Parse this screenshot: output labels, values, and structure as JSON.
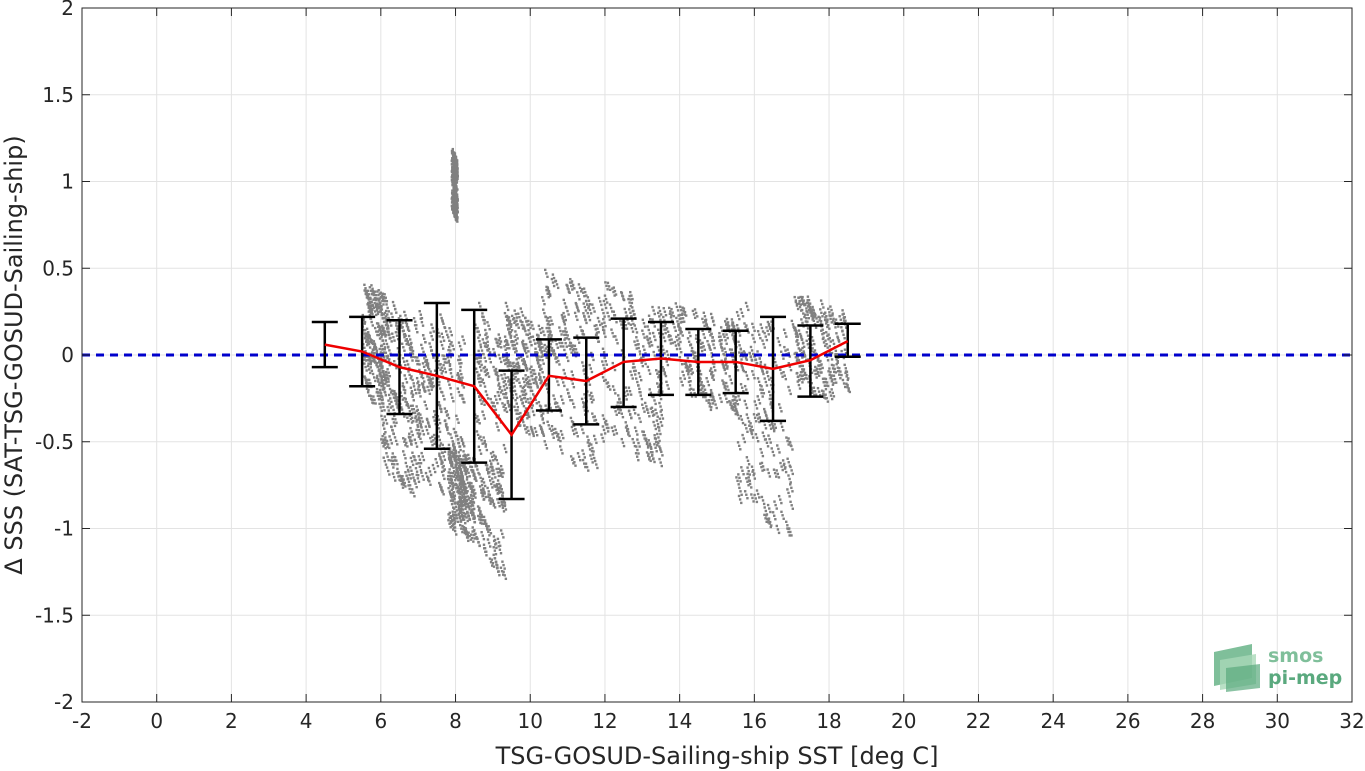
{
  "chart_data": {
    "type": "scatter",
    "xlabel": "TSG-GOSUD-Sailing-ship SST [deg C]",
    "ylabel": "Δ SSS (SAT-TSG-GOSUD-Sailing-ship)",
    "xlim": [
      -2,
      32
    ],
    "ylim": [
      -2,
      2
    ],
    "xticks": [
      "-2",
      "0",
      "2",
      "4",
      "6",
      "8",
      "10",
      "12",
      "14",
      "16",
      "18",
      "20",
      "22",
      "24",
      "26",
      "28",
      "30",
      "32"
    ],
    "yticks": [
      "-2",
      "-1.5",
      "-1",
      "-0.5",
      "0",
      "0.5",
      "1",
      "1.5",
      "2"
    ],
    "grid": true,
    "reference_line": {
      "y": 0,
      "style": "dashed",
      "color": "#0000cc"
    },
    "scatter_color": "#808080",
    "mean_color": "#ee0000",
    "errorbar_color": "#000000",
    "scatter_clusters": [
      {
        "x_range": [
          5.5,
          6.2
        ],
        "y_range": [
          -0.3,
          0.43
        ]
      },
      {
        "x_range": [
          6.0,
          7.0
        ],
        "y_range": [
          -0.78,
          0.35
        ]
      },
      {
        "x_range": [
          7.0,
          8.2
        ],
        "y_range": [
          -0.85,
          0.3
        ]
      },
      {
        "x_range": [
          7.8,
          8.5
        ],
        "y_range": [
          -1.05,
          -0.5
        ]
      },
      {
        "x_range": [
          7.9,
          8.0
        ],
        "y_range": [
          0.8,
          1.2
        ]
      },
      {
        "x_range": [
          8.5,
          9.3
        ],
        "y_range": [
          -1.25,
          0.3
        ]
      },
      {
        "x_range": [
          9.3,
          10.3
        ],
        "y_range": [
          -0.45,
          0.3
        ]
      },
      {
        "x_range": [
          10.3,
          11.8
        ],
        "y_range": [
          -0.65,
          0.5
        ]
      },
      {
        "x_range": [
          11.8,
          13.5
        ],
        "y_range": [
          -0.6,
          0.42
        ]
      },
      {
        "x_range": [
          13.5,
          15.5
        ],
        "y_range": [
          -0.3,
          0.3
        ]
      },
      {
        "x_range": [
          15.5,
          17.0
        ],
        "y_range": [
          -1.0,
          0.3
        ]
      },
      {
        "x_range": [
          17.0,
          18.5
        ],
        "y_range": [
          -0.25,
          0.35
        ]
      }
    ],
    "bin_stats": [
      {
        "x": 4.5,
        "mean": 0.06,
        "lower": -0.07,
        "upper": 0.19
      },
      {
        "x": 5.5,
        "mean": 0.02,
        "lower": -0.18,
        "upper": 0.22
      },
      {
        "x": 6.5,
        "mean": -0.07,
        "lower": -0.34,
        "upper": 0.2
      },
      {
        "x": 7.5,
        "mean": -0.12,
        "lower": -0.54,
        "upper": 0.3
      },
      {
        "x": 8.5,
        "mean": -0.18,
        "lower": -0.62,
        "upper": 0.26
      },
      {
        "x": 9.5,
        "mean": -0.46,
        "lower": -0.83,
        "upper": -0.09
      },
      {
        "x": 10.5,
        "mean": -0.12,
        "lower": -0.32,
        "upper": 0.09
      },
      {
        "x": 11.5,
        "mean": -0.15,
        "lower": -0.4,
        "upper": 0.1
      },
      {
        "x": 12.5,
        "mean": -0.04,
        "lower": -0.3,
        "upper": 0.21
      },
      {
        "x": 13.5,
        "mean": -0.02,
        "lower": -0.23,
        "upper": 0.19
      },
      {
        "x": 14.5,
        "mean": -0.04,
        "lower": -0.23,
        "upper": 0.15
      },
      {
        "x": 15.5,
        "mean": -0.04,
        "lower": -0.22,
        "upper": 0.14
      },
      {
        "x": 16.5,
        "mean": -0.08,
        "lower": -0.38,
        "upper": 0.22
      },
      {
        "x": 17.5,
        "mean": -0.03,
        "lower": -0.24,
        "upper": 0.17
      },
      {
        "x": 18.5,
        "mean": 0.08,
        "lower": -0.01,
        "upper": 0.18
      }
    ]
  },
  "logo": {
    "line1": "smos",
    "line2": "pi-mep",
    "colors": [
      "#7fbf9a",
      "#a9d8b8",
      "#5aa97e"
    ]
  }
}
